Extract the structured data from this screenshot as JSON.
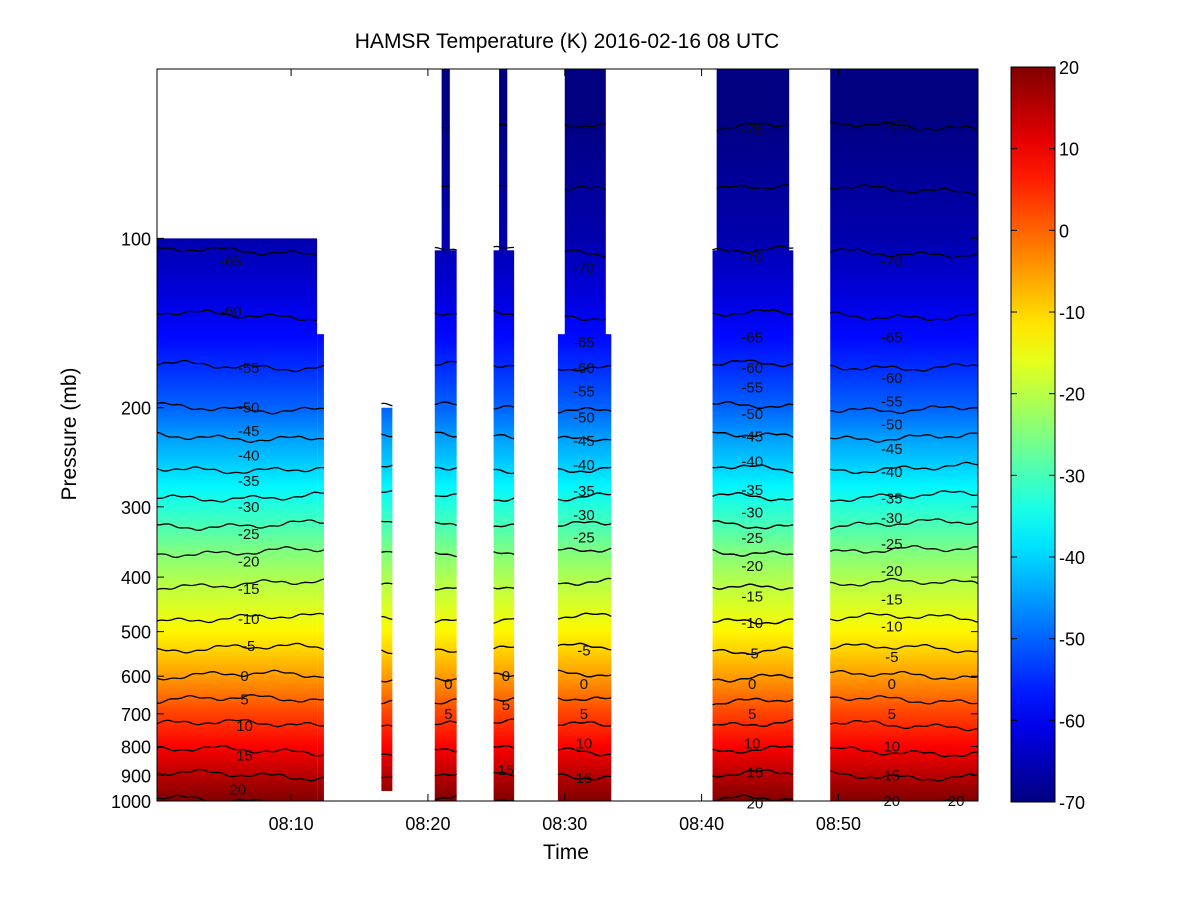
{
  "chart_data": {
    "type": "heatmap",
    "title": "HAMSR  Temperature (K) 2016-02-16 08 UTC",
    "xlabel": "Time",
    "ylabel": "Pressure (mb)",
    "x_tick_labels": [
      "08:10",
      "08:20",
      "08:30",
      "08:40",
      "08:50"
    ],
    "x_tick_minutes": [
      10,
      20,
      30,
      40,
      50
    ],
    "xlim_minutes": [
      0.2,
      60.2
    ],
    "y_tick_labels": [
      "100",
      "200",
      "300",
      "400",
      "500",
      "600",
      "700",
      "800",
      "900",
      "1000"
    ],
    "y_tick_values": [
      100,
      200,
      300,
      400,
      500,
      600,
      700,
      800,
      900,
      1000
    ],
    "ylim": [
      50,
      1000
    ],
    "y_scale": "log",
    "y_reversed": true,
    "colorbar": {
      "range": [
        -70,
        20
      ],
      "tick_labels": [
        "20",
        "10",
        "0",
        "-10",
        "-20",
        "-30",
        "-40",
        "-50",
        "-60",
        "-70"
      ],
      "tick_values": [
        20,
        10,
        0,
        -10,
        -20,
        -30,
        -40,
        -50,
        -60,
        -70
      ],
      "colormap": "jet"
    },
    "contour_levels": [
      -75,
      -70,
      -65,
      -60,
      -55,
      -50,
      -45,
      -40,
      -35,
      -30,
      -25,
      -20,
      -15,
      -10,
      -5,
      0,
      5,
      10,
      15,
      20
    ],
    "temperature_profile": [
      {
        "pressure": 60,
        "temp": -76
      },
      {
        "pressure": 100,
        "temp": -66
      },
      {
        "pressure": 125,
        "temp": -62
      },
      {
        "pressure": 150,
        "temp": -58
      },
      {
        "pressure": 175,
        "temp": -54
      },
      {
        "pressure": 200,
        "temp": -50
      },
      {
        "pressure": 215,
        "temp": -47
      },
      {
        "pressure": 230,
        "temp": -44
      },
      {
        "pressure": 250,
        "temp": -41
      },
      {
        "pressure": 275,
        "temp": -37
      },
      {
        "pressure": 300,
        "temp": -33
      },
      {
        "pressure": 330,
        "temp": -29
      },
      {
        "pressure": 360,
        "temp": -25
      },
      {
        "pressure": 400,
        "temp": -21
      },
      {
        "pressure": 450,
        "temp": -17
      },
      {
        "pressure": 500,
        "temp": -13
      },
      {
        "pressure": 550,
        "temp": -9
      },
      {
        "pressure": 600,
        "temp": -5
      },
      {
        "pressure": 650,
        "temp": -1
      },
      {
        "pressure": 700,
        "temp": 3
      },
      {
        "pressure": 800,
        "temp": 9
      },
      {
        "pressure": 900,
        "temp": 15
      },
      {
        "pressure": 1000,
        "temp": 20
      }
    ],
    "data_segments": [
      {
        "start_min": 0.2,
        "end_min": 11.9,
        "top_pressure": 100
      },
      {
        "start_min": 11.9,
        "end_min": 12.4,
        "top_pressure": 148
      },
      {
        "start_min": 16.6,
        "end_min": 17.4,
        "top_pressure": 200,
        "bottom_pressure": 960
      },
      {
        "start_min": 20.5,
        "end_min": 22.1,
        "top_pressure": 105
      },
      {
        "start_min": 21.0,
        "end_min": 21.6,
        "top_pressure": 50
      },
      {
        "start_min": 24.8,
        "end_min": 26.3,
        "top_pressure": 105
      },
      {
        "start_min": 25.2,
        "end_min": 25.8,
        "top_pressure": 50
      },
      {
        "start_min": 29.5,
        "end_min": 33.4,
        "top_pressure": 148
      },
      {
        "start_min": 30.0,
        "end_min": 33.0,
        "top_pressure": 50
      },
      {
        "start_min": 40.8,
        "end_min": 46.7,
        "top_pressure": 105
      },
      {
        "start_min": 41.1,
        "end_min": 46.4,
        "top_pressure": 50
      },
      {
        "start_min": 49.4,
        "end_min": 60.2,
        "top_pressure": 50
      }
    ],
    "contour_labels": [
      {
        "text": "-65",
        "time": 5.6,
        "pressure": 110
      },
      {
        "text": "-60",
        "time": 5.6,
        "pressure": 135
      },
      {
        "text": "-55",
        "time": 6.9,
        "pressure": 170
      },
      {
        "text": "-50",
        "time": 6.9,
        "pressure": 200
      },
      {
        "text": "-45",
        "time": 6.9,
        "pressure": 220
      },
      {
        "text": "-40",
        "time": 6.9,
        "pressure": 243
      },
      {
        "text": "-35",
        "time": 6.9,
        "pressure": 270
      },
      {
        "text": "-30",
        "time": 6.9,
        "pressure": 300
      },
      {
        "text": "-25",
        "time": 6.9,
        "pressure": 335
      },
      {
        "text": "-20",
        "time": 6.9,
        "pressure": 375
      },
      {
        "text": "-15",
        "time": 6.9,
        "pressure": 420
      },
      {
        "text": "-10",
        "time": 6.9,
        "pressure": 475
      },
      {
        "text": "-5",
        "time": 6.9,
        "pressure": 530
      },
      {
        "text": "0",
        "time": 6.6,
        "pressure": 600
      },
      {
        "text": "5",
        "time": 6.6,
        "pressure": 660
      },
      {
        "text": "10",
        "time": 6.6,
        "pressure": 735
      },
      {
        "text": "15",
        "time": 6.6,
        "pressure": 830
      },
      {
        "text": "20",
        "time": 6.1,
        "pressure": 955
      },
      {
        "text": "-75",
        "time": 43.7,
        "pressure": 64
      },
      {
        "text": "-70",
        "time": 43.7,
        "pressure": 108
      },
      {
        "text": "-65",
        "time": 43.7,
        "pressure": 150
      },
      {
        "text": "-60",
        "time": 43.7,
        "pressure": 170
      },
      {
        "text": "-55",
        "time": 43.7,
        "pressure": 184
      },
      {
        "text": "-50",
        "time": 43.7,
        "pressure": 205
      },
      {
        "text": "-45",
        "time": 43.7,
        "pressure": 225
      },
      {
        "text": "-40",
        "time": 43.7,
        "pressure": 249
      },
      {
        "text": "-35",
        "time": 43.7,
        "pressure": 280
      },
      {
        "text": "-30",
        "time": 43.7,
        "pressure": 307
      },
      {
        "text": "-25",
        "time": 43.7,
        "pressure": 341
      },
      {
        "text": "-20",
        "time": 43.7,
        "pressure": 382
      },
      {
        "text": "-15",
        "time": 43.7,
        "pressure": 433
      },
      {
        "text": "-10",
        "time": 43.7,
        "pressure": 483
      },
      {
        "text": "-5",
        "time": 43.7,
        "pressure": 547
      },
      {
        "text": "0",
        "time": 43.7,
        "pressure": 620
      },
      {
        "text": "5",
        "time": 43.7,
        "pressure": 700
      },
      {
        "text": "10",
        "time": 43.7,
        "pressure": 790
      },
      {
        "text": "15",
        "time": 43.9,
        "pressure": 890
      },
      {
        "text": "20",
        "time": 43.9,
        "pressure": 1010
      },
      {
        "text": "-70",
        "time": 31.4,
        "pressure": 113
      },
      {
        "text": "-65",
        "time": 31.4,
        "pressure": 153
      },
      {
        "text": "-60",
        "time": 31.4,
        "pressure": 170
      },
      {
        "text": "-55",
        "time": 31.4,
        "pressure": 187
      },
      {
        "text": "-50",
        "time": 31.4,
        "pressure": 208
      },
      {
        "text": "-45",
        "time": 31.4,
        "pressure": 229
      },
      {
        "text": "-40",
        "time": 31.4,
        "pressure": 253
      },
      {
        "text": "-35",
        "time": 31.4,
        "pressure": 281
      },
      {
        "text": "-30",
        "time": 31.4,
        "pressure": 310
      },
      {
        "text": "-25",
        "time": 31.4,
        "pressure": 340
      },
      {
        "text": "-5",
        "time": 31.4,
        "pressure": 540
      },
      {
        "text": "0",
        "time": 31.4,
        "pressure": 620
      },
      {
        "text": "5",
        "time": 31.4,
        "pressure": 700
      },
      {
        "text": "10",
        "time": 31.4,
        "pressure": 790
      },
      {
        "text": "15",
        "time": 31.4,
        "pressure": 910
      },
      {
        "text": "0",
        "time": 21.5,
        "pressure": 620
      },
      {
        "text": "5",
        "time": 21.5,
        "pressure": 700
      },
      {
        "text": "0",
        "time": 25.7,
        "pressure": 600
      },
      {
        "text": "5",
        "time": 25.7,
        "pressure": 675
      },
      {
        "text": "15",
        "time": 25.7,
        "pressure": 880
      },
      {
        "text": "-75",
        "time": 54.3,
        "pressure": 63
      },
      {
        "text": "-70",
        "time": 53.9,
        "pressure": 110
      },
      {
        "text": "-65",
        "time": 53.9,
        "pressure": 150
      },
      {
        "text": "-60",
        "time": 53.9,
        "pressure": 177
      },
      {
        "text": "-55",
        "time": 53.9,
        "pressure": 195
      },
      {
        "text": "-50",
        "time": 53.9,
        "pressure": 214
      },
      {
        "text": "-45",
        "time": 53.9,
        "pressure": 237
      },
      {
        "text": "-40",
        "time": 53.9,
        "pressure": 260
      },
      {
        "text": "-35",
        "time": 53.9,
        "pressure": 290
      },
      {
        "text": "-30",
        "time": 53.9,
        "pressure": 314
      },
      {
        "text": "-25",
        "time": 53.9,
        "pressure": 349
      },
      {
        "text": "-20",
        "time": 53.9,
        "pressure": 390
      },
      {
        "text": "-15",
        "time": 53.9,
        "pressure": 438
      },
      {
        "text": "-10",
        "time": 53.9,
        "pressure": 490
      },
      {
        "text": "-5",
        "time": 53.9,
        "pressure": 555
      },
      {
        "text": "0",
        "time": 53.9,
        "pressure": 620
      },
      {
        "text": "5",
        "time": 53.9,
        "pressure": 700
      },
      {
        "text": "10",
        "time": 53.9,
        "pressure": 800
      },
      {
        "text": "15",
        "time": 53.9,
        "pressure": 900
      },
      {
        "text": "20",
        "time": 53.9,
        "pressure": 1000
      },
      {
        "text": "20",
        "time": 58.6,
        "pressure": 1000
      }
    ]
  }
}
